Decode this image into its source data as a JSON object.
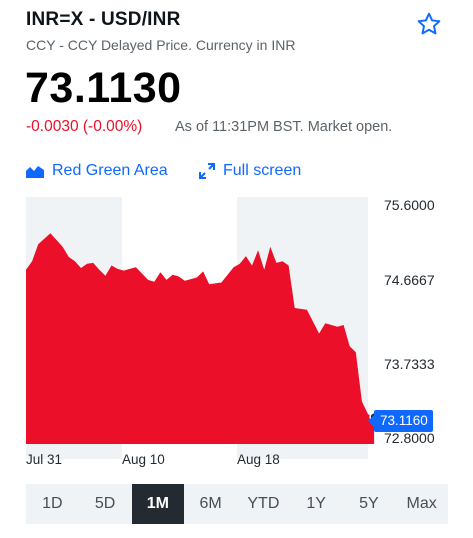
{
  "header": {
    "title": "INR=X - USD/INR",
    "subtitle": "CCY - CCY Delayed Price. Currency in INR"
  },
  "quote": {
    "price": "73.1130",
    "change": "-0.0030 (-0.00%)",
    "as_of": "As of 11:31PM BST. Market open.",
    "change_color": "#eb0f29"
  },
  "links": {
    "chart_type": "Red Green Area",
    "full_screen": "Full screen"
  },
  "chart_data": {
    "type": "area",
    "color": "#eb0f29",
    "last_value_label": "73.1160",
    "y_ticks": [
      "75.6000",
      "74.6667",
      "73.7333",
      "72.8000"
    ],
    "ylim": [
      72.8,
      75.6
    ],
    "x_ticks": [
      "Jul 31",
      "Aug 10",
      "Aug 18"
    ],
    "x_range": [
      "2020-07-31",
      "2020-08-28"
    ],
    "x": [
      "2020-07-31",
      "2020-07-31",
      "2020-08-01",
      "2020-08-02",
      "2020-08-03",
      "2020-08-03",
      "2020-08-04",
      "2020-08-04",
      "2020-08-05",
      "2020-08-05",
      "2020-08-06",
      "2020-08-06",
      "2020-08-07",
      "2020-08-07",
      "2020-08-08",
      "2020-08-09",
      "2020-08-10",
      "2020-08-10",
      "2020-08-11",
      "2020-08-11",
      "2020-08-12",
      "2020-08-12",
      "2020-08-13",
      "2020-08-13",
      "2020-08-14",
      "2020-08-14",
      "2020-08-15",
      "2020-08-16",
      "2020-08-17",
      "2020-08-17",
      "2020-08-18",
      "2020-08-18",
      "2020-08-19",
      "2020-08-19",
      "2020-08-20",
      "2020-08-20",
      "2020-08-21",
      "2020-08-21",
      "2020-08-22",
      "2020-08-23",
      "2020-08-24",
      "2020-08-24",
      "2020-08-25",
      "2020-08-25",
      "2020-08-26",
      "2020-08-26",
      "2020-08-27",
      "2020-08-27",
      "2020-08-28",
      "2020-08-28"
    ],
    "values": [
      74.85,
      74.95,
      75.15,
      75.28,
      75.12,
      75.0,
      74.95,
      74.87,
      74.92,
      74.93,
      74.85,
      74.78,
      74.9,
      74.86,
      74.84,
      74.88,
      74.73,
      74.71,
      74.82,
      74.73,
      74.79,
      74.77,
      74.72,
      74.74,
      74.76,
      74.83,
      74.68,
      74.7,
      74.88,
      74.92,
      75.01,
      74.9,
      75.08,
      74.85,
      75.12,
      74.93,
      74.95,
      74.9,
      74.4,
      74.38,
      74.1,
      74.22,
      74.2,
      74.18,
      74.2,
      73.95,
      73.88,
      73.3,
      73.15,
      73.12
    ],
    "grid": false
  },
  "ranges": {
    "items": [
      "1D",
      "5D",
      "1M",
      "6M",
      "YTD",
      "1Y",
      "5Y",
      "Max"
    ],
    "active": "1M"
  }
}
